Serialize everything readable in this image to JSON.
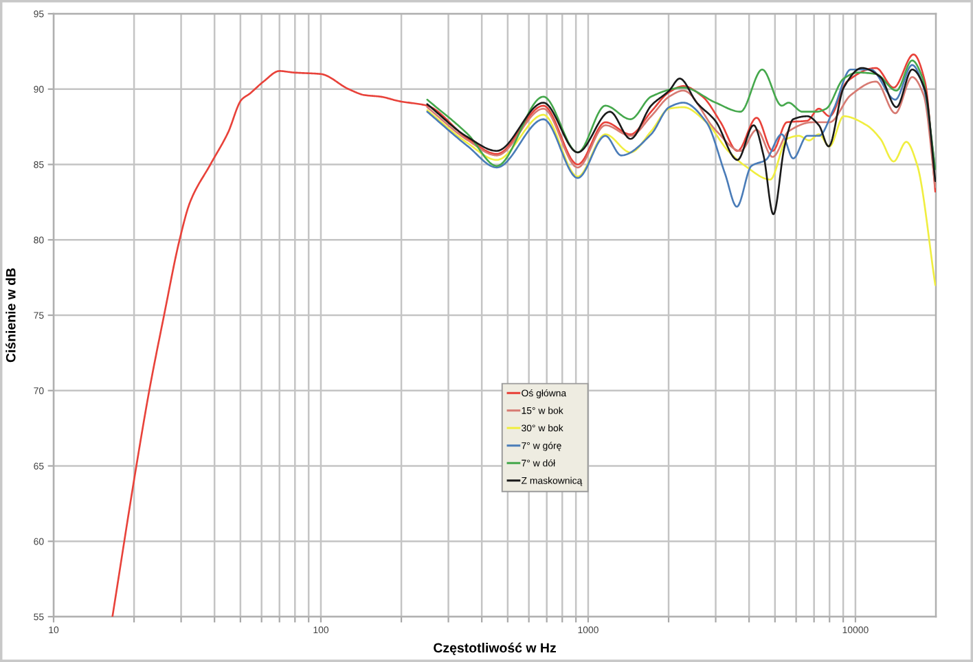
{
  "chart_data": {
    "type": "line",
    "xlabel": "Częstotliwość w Hz",
    "ylabel": "Ciśnienie w dB",
    "log": "x",
    "grid": true,
    "legend": "center",
    "xlim": [
      10,
      20000
    ],
    "ylim": [
      55,
      95
    ],
    "xticks": [
      10,
      {
        "value": 20,
        "label": null
      },
      {
        "value": 30,
        "label": null
      },
      {
        "value": 40,
        "label": null
      },
      {
        "value": 50,
        "label": null
      },
      {
        "value": 60,
        "label": null
      },
      {
        "value": 70,
        "label": null
      },
      {
        "value": 80,
        "label": null
      },
      {
        "value": 90,
        "label": null
      },
      100,
      {
        "value": 200,
        "label": null
      },
      {
        "value": 300,
        "label": null
      },
      {
        "value": 400,
        "label": null
      },
      {
        "value": 500,
        "label": null
      },
      {
        "value": 600,
        "label": null
      },
      {
        "value": 700,
        "label": null
      },
      {
        "value": 800,
        "label": null
      },
      {
        "value": 900,
        "label": null
      },
      1000,
      {
        "value": 2000,
        "label": null
      },
      {
        "value": 3000,
        "label": null
      },
      {
        "value": 4000,
        "label": null
      },
      {
        "value": 5000,
        "label": null
      },
      {
        "value": 6000,
        "label": null
      },
      {
        "value": 7000,
        "label": null
      },
      {
        "value": 8000,
        "label": null
      },
      {
        "value": 9000,
        "label": null
      },
      10000
    ],
    "yticks": [
      55,
      60,
      65,
      70,
      75,
      80,
      85,
      90,
      95
    ],
    "series": [
      {
        "name": "Oś główna",
        "color": "#e8423a",
        "x": [
          16.6,
          20.4,
          22.8,
          25.9,
          29.6,
          32.4,
          38.6,
          44.9,
          50.5,
          54.2,
          61,
          70,
          79,
          100,
          127,
          146,
          167,
          196,
          250,
          355,
          455,
          680,
          914,
          1160,
          1440,
          1720,
          2010,
          2270,
          2680,
          3130,
          3620,
          4270,
          4900,
          5540,
          6600,
          7300,
          8000,
          9300,
          11940,
          13900,
          16500,
          18200,
          19900
        ],
        "values": [
          55,
          65,
          70,
          75,
          80,
          82.5,
          85,
          87.1,
          89.3,
          89.7,
          90.5,
          91.2,
          91.1,
          91.0,
          90.0,
          89.6,
          89.5,
          89.2,
          88.9,
          86.7,
          85.7,
          88.9,
          85.0,
          87.8,
          87.0,
          88.5,
          89.8,
          90.2,
          89.5,
          87.8,
          85.9,
          88.1,
          85.9,
          87.8,
          87.9,
          88.7,
          88.2,
          90.5,
          91.4,
          90.1,
          92.3,
          90.5,
          83.2
        ]
      },
      {
        "name": "15° w bok",
        "color": "#d77a72",
        "x": [
          250,
          355,
          455,
          680,
          914,
          1160,
          1440,
          1720,
          2010,
          2270,
          2990,
          3715,
          4270,
          4900,
          5620,
          6900,
          8000,
          9600,
          11940,
          14100,
          16300,
          18000,
          19900
        ],
        "values": [
          88.8,
          86.6,
          85.6,
          88.7,
          84.8,
          87.6,
          86.9,
          88.2,
          89.5,
          89.9,
          87.3,
          85.9,
          87.3,
          85.5,
          87.2,
          87.8,
          87.8,
          89.6,
          90.5,
          88.4,
          90.8,
          89.6,
          83.5
        ]
      },
      {
        "name": "30° w bok",
        "color": "#f0ee40",
        "x": [
          250,
          355,
          455,
          680,
          914,
          1160,
          1440,
          1720,
          2010,
          2270,
          2770,
          3340,
          3870,
          4800,
          5540,
          6140,
          6710,
          7300,
          8000,
          9040,
          11020,
          12400,
          13900,
          15500,
          17000,
          19900
        ],
        "values": [
          88.6,
          86.4,
          85.3,
          88.3,
          84.2,
          87.0,
          85.8,
          87.2,
          88.7,
          88.8,
          87.8,
          85.9,
          84.9,
          84.0,
          86.7,
          86.9,
          86.6,
          87.0,
          86.2,
          88.2,
          87.6,
          86.7,
          85.2,
          86.5,
          85.0,
          77.0
        ]
      },
      {
        "name": "7° w górę",
        "color": "#4a7cb8",
        "x": [
          250,
          355,
          455,
          680,
          914,
          1160,
          1330,
          1720,
          2010,
          2270,
          2770,
          3250,
          3600,
          4080,
          4620,
          5300,
          5850,
          6600,
          7300,
          8300,
          9600,
          11400,
          14100,
          16300,
          18000,
          19900
        ],
        "values": [
          88.5,
          86.2,
          84.8,
          88.0,
          84.1,
          86.9,
          85.6,
          87.0,
          88.8,
          89.1,
          87.8,
          84.4,
          82.2,
          84.9,
          85.3,
          87.0,
          85.4,
          86.9,
          86.9,
          88.7,
          91.3,
          91.3,
          89.3,
          91.6,
          90.1,
          84.7
        ]
      },
      {
        "name": "7° w dół",
        "color": "#45a84c",
        "x": [
          250,
          355,
          455,
          680,
          914,
          1160,
          1440,
          1720,
          2270,
          3000,
          3715,
          4480,
          5300,
          5620,
          6330,
          7160,
          7770,
          9040,
          10200,
          11940,
          14230,
          16300,
          17850,
          19900
        ],
        "values": [
          89.3,
          87.0,
          84.9,
          89.5,
          85.8,
          88.9,
          88.0,
          89.5,
          90.1,
          89.1,
          88.5,
          91.3,
          88.9,
          89.1,
          88.5,
          88.5,
          88.7,
          90.7,
          91.1,
          91.0,
          89.9,
          91.9,
          90.7,
          84.7
        ]
      },
      {
        "name": "Z maskownicą",
        "color": "#1a1a1a",
        "x": [
          250,
          355,
          455,
          680,
          914,
          1206,
          1440,
          1720,
          2010,
          2200,
          2550,
          2990,
          3620,
          4160,
          4530,
          4930,
          5430,
          5850,
          6600,
          7300,
          7940,
          9040,
          10570,
          12400,
          14230,
          16300,
          18240,
          19900
        ],
        "values": [
          89.0,
          86.8,
          85.9,
          89.1,
          85.8,
          88.5,
          86.7,
          88.9,
          89.9,
          90.7,
          89.1,
          87.9,
          85.3,
          87.6,
          85.6,
          81.7,
          86.2,
          88.0,
          88.2,
          87.6,
          86.2,
          90.1,
          91.4,
          90.8,
          88.8,
          91.3,
          89.9,
          83.9
        ]
      }
    ]
  }
}
